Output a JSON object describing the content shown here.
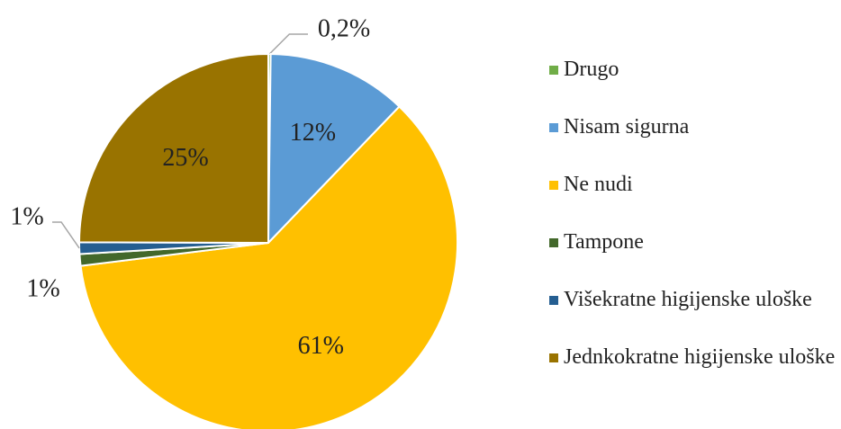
{
  "chart_data": {
    "type": "pie",
    "categories": [
      "Drugo",
      "Nisam sigurna",
      "Ne nudi",
      "Tampone",
      "Višekratne higijenske uloške",
      "Jednkokratne higijenske uloške"
    ],
    "values": [
      0.2,
      12,
      61,
      1,
      1,
      25
    ],
    "value_labels": [
      "0,2%",
      "12%",
      "61%",
      "1%",
      "1%",
      "25%"
    ],
    "colors": [
      "#70ad47",
      "#5b9bd5",
      "#ffc000",
      "#43682b",
      "#255e91",
      "#997300"
    ],
    "legend": "right"
  }
}
